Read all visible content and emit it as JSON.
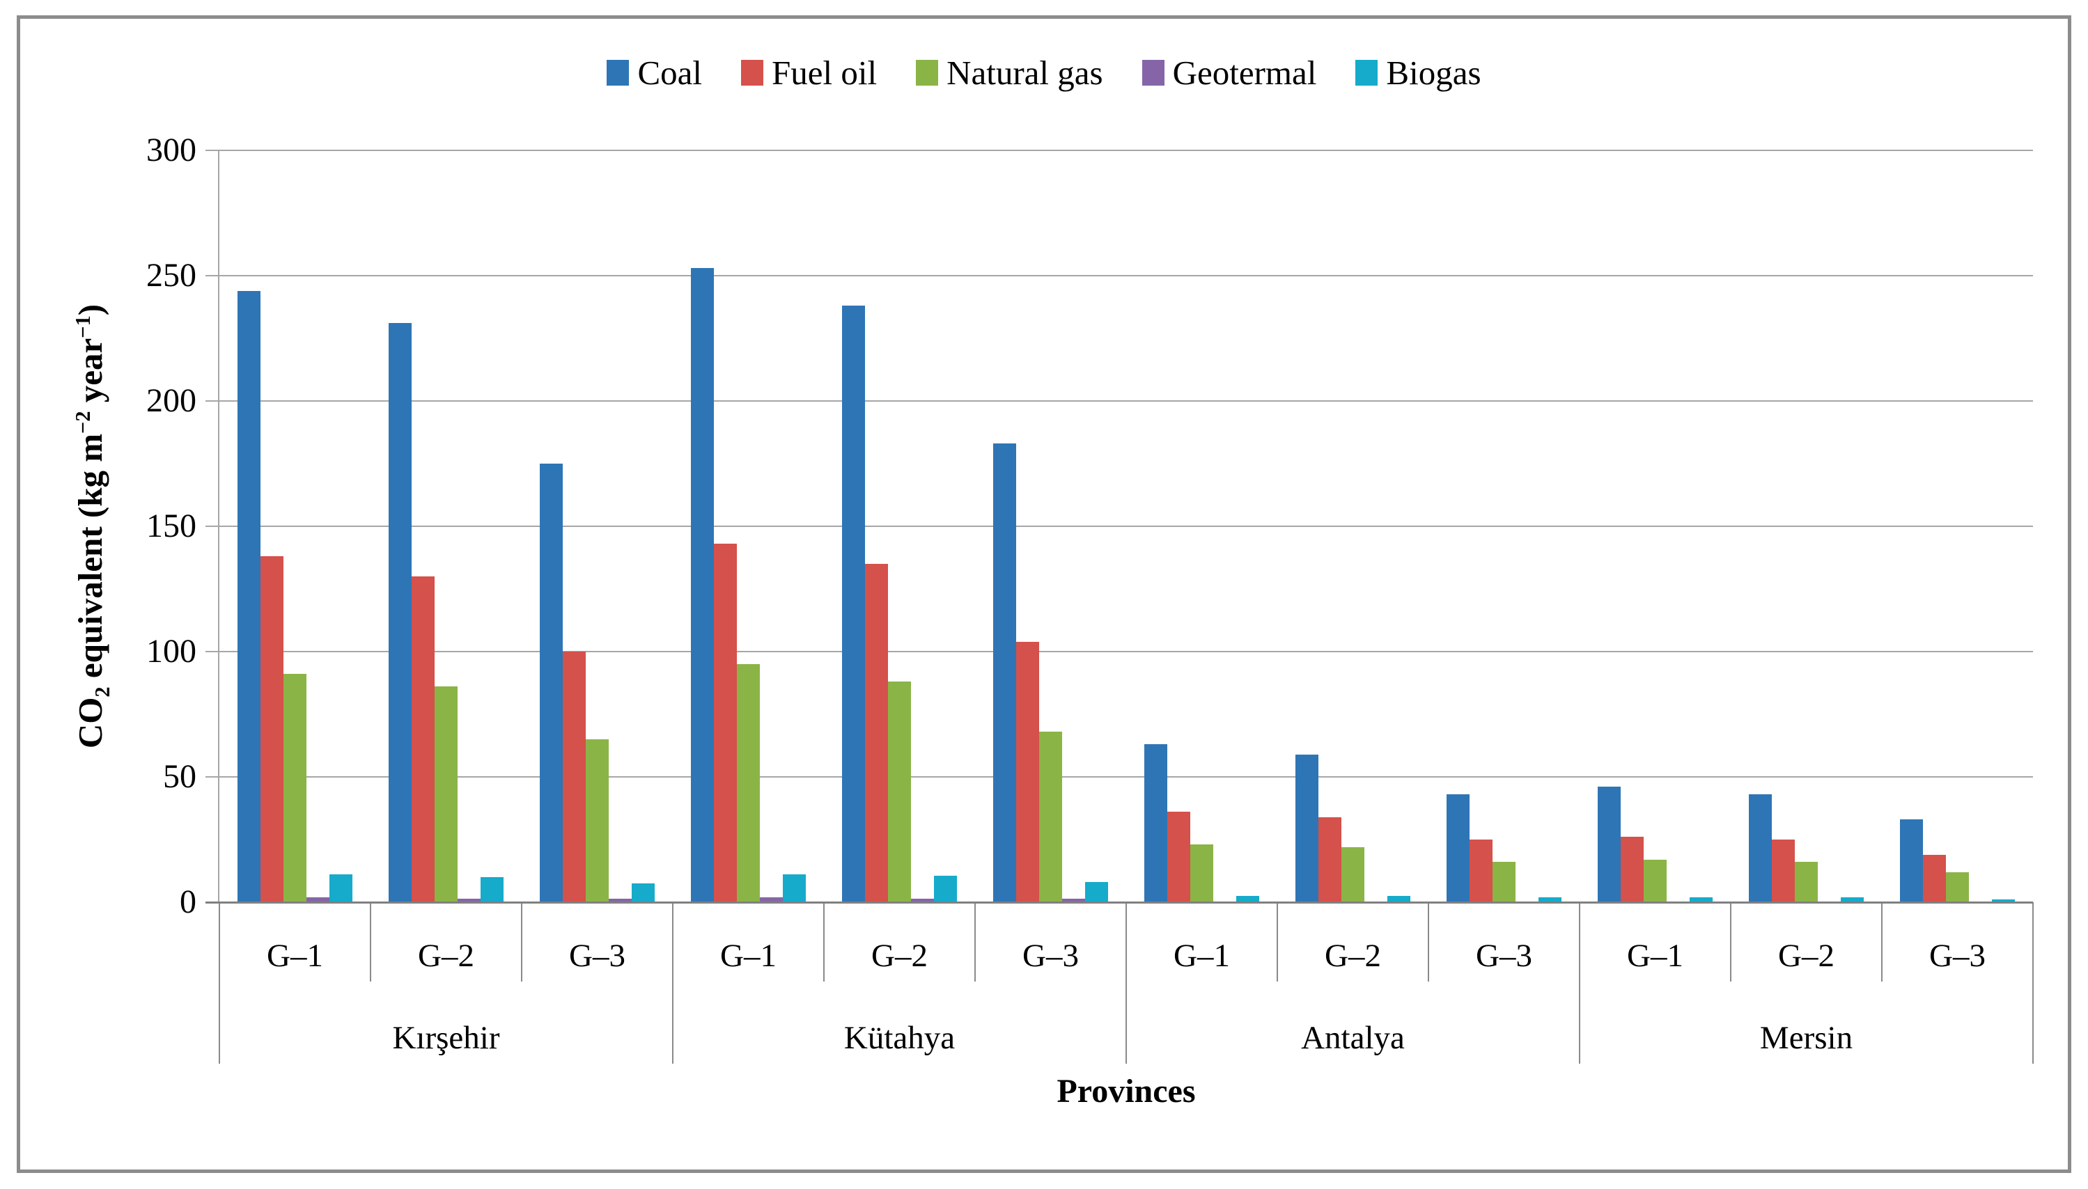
{
  "figure": {
    "border_color": "#8c8c8c",
    "background": "#ffffff"
  },
  "ui_colors": {
    "gridline": "#a6a6a6",
    "axis_line": "#a6a6a6",
    "baseline": "#808080",
    "separator": "#8a8a8a",
    "text": "#000000"
  },
  "chart_data": {
    "type": "bar",
    "title": "",
    "xlabel": "Provinces",
    "ylabel_text": "CO2 equivalent (kg m-2 year-1)",
    "ylabel_parts": [
      {
        "text": "CO"
      },
      {
        "text": "2",
        "style": "sub"
      },
      {
        "text": " equivalent (kg m"
      },
      {
        "text": "−2",
        "style": "sup"
      },
      {
        "text": " year"
      },
      {
        "text": "−1",
        "style": "sup"
      },
      {
        "text": ")"
      }
    ],
    "ylim": [
      0,
      300
    ],
    "yticks": [
      0,
      50,
      100,
      150,
      200,
      250,
      300
    ],
    "grid": true,
    "legend_position": "top-center",
    "provinces": [
      {
        "name": "Kırşehir",
        "groups": [
          "G–1",
          "G–2",
          "G–3"
        ]
      },
      {
        "name": "Kütahya",
        "groups": [
          "G–1",
          "G–2",
          "G–3"
        ]
      },
      {
        "name": "Antalya",
        "groups": [
          "G–1",
          "G–2",
          "G–3"
        ]
      },
      {
        "name": "Mersin",
        "groups": [
          "G–1",
          "G–2",
          "G–3"
        ]
      }
    ],
    "series": [
      {
        "name": "Coal",
        "color": "#2E75B6",
        "values": [
          244,
          231,
          175,
          253,
          238,
          183,
          63,
          59,
          43,
          46,
          43,
          33
        ]
      },
      {
        "name": "Fuel oil",
        "color": "#D5514B",
        "values": [
          138,
          130,
          100,
          143,
          135,
          104,
          36,
          34,
          25,
          26,
          25,
          19
        ]
      },
      {
        "name": "Natural gas",
        "color": "#8BB447",
        "values": [
          91,
          86,
          65,
          95,
          88,
          68,
          23,
          22,
          16,
          17,
          16,
          12
        ]
      },
      {
        "name": "Geotermal",
        "color": "#8565A7",
        "values": [
          2,
          1.5,
          1.5,
          2,
          1.5,
          1.5,
          0,
          0,
          0,
          0,
          0,
          0
        ]
      },
      {
        "name": "Biogas",
        "color": "#16ABCB",
        "values": [
          11,
          10,
          7.5,
          11,
          10.5,
          8,
          2.5,
          2.5,
          2,
          2,
          2,
          1
        ]
      }
    ]
  }
}
